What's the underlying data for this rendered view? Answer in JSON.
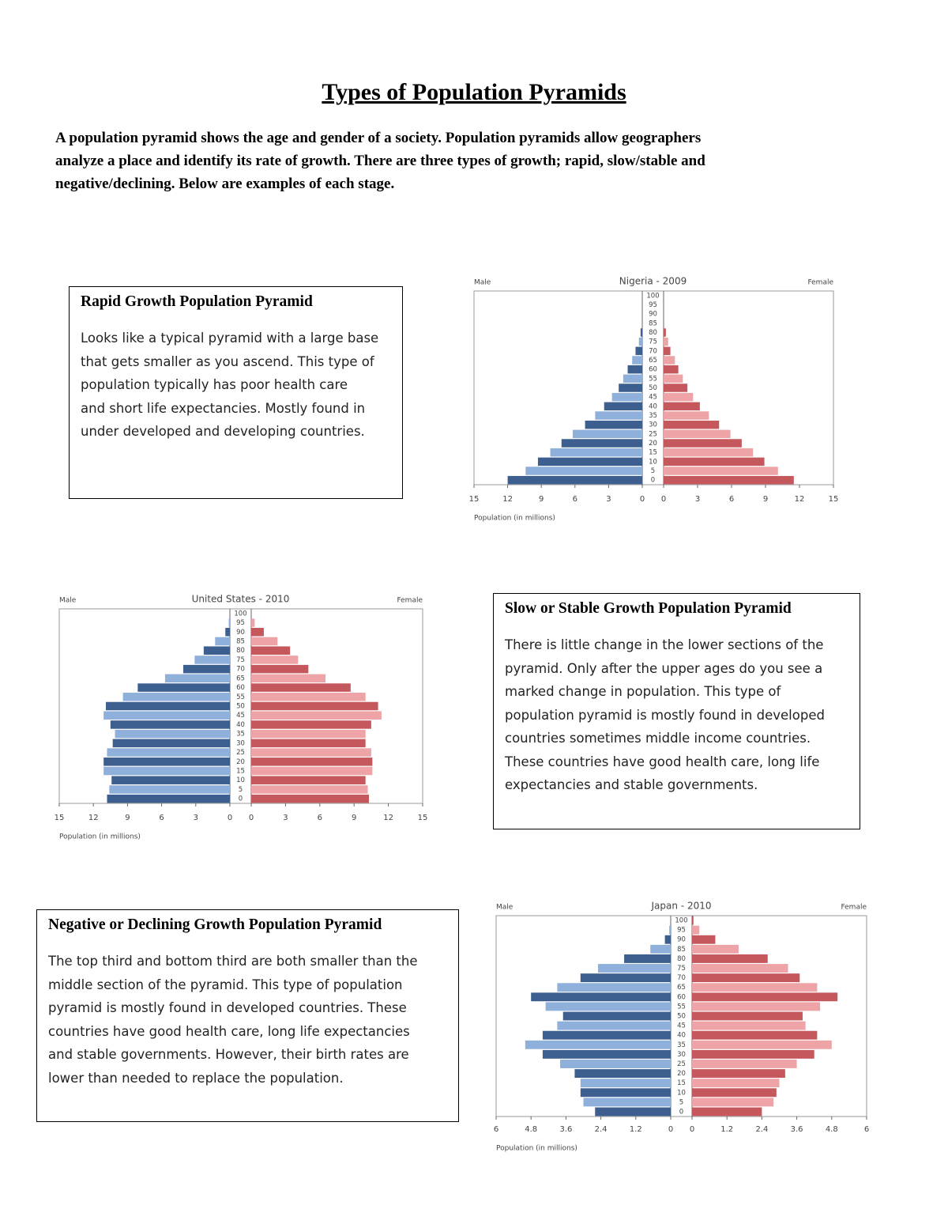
{
  "header": {
    "title": "Types of Population Pyramids",
    "intro": [
      "A population pyramid shows the age and gender of a society.  Population pyramids allow geographers",
      "analyze a place and identify its rate of growth.  There are three types of growth; rapid, slow/stable and",
      "negative/declining.  Below are examples of each stage."
    ]
  },
  "boxes": [
    {
      "title": "Rapid Growth Population Pyramid",
      "lines": [
        "Looks like a typical pyramid with a large base",
        "that gets smaller as you ascend. This type of",
        "population typically has poor health care",
        "and short life expectancies.  Mostly found in",
        "under developed and developing countries."
      ]
    },
    {
      "title": "Slow or Stable Growth Population Pyramid",
      "lines": [
        "There is little change in the lower sections of the",
        "pyramid.  Only after the upper ages do you see a",
        "marked change in population.  This type of",
        "population pyramid is mostly found in developed",
        "countries sometimes middle income countries.",
        "These countries have good health care, long life",
        "expectancies and stable governments."
      ]
    },
    {
      "title": "Negative or Declining Growth Population Pyramid",
      "lines": [
        "The top third and bottom third are both smaller than the",
        "middle section of the pyramid.  This type of population",
        "pyramid is mostly found in developed countries.  These",
        "countries have good health care, long life expectancies",
        "and stable governments.  However, their birth rates are",
        "lower than needed to replace the population."
      ]
    }
  ],
  "chart_data": [
    {
      "type": "pyramid",
      "title": "Nigeria - 2009",
      "x_label": "Population (in millions)",
      "categories": [
        "0",
        "5",
        "10",
        "15",
        "20",
        "25",
        "30",
        "35",
        "40",
        "45",
        "50",
        "55",
        "60",
        "65",
        "70",
        "75",
        "80",
        "85",
        "90",
        "95",
        "100"
      ],
      "series": [
        {
          "name": "Male",
          "colors": [
            "#3d5f8f",
            "#8fb0da"
          ],
          "values": [
            12.0,
            10.4,
            9.3,
            8.2,
            7.2,
            6.2,
            5.1,
            4.2,
            3.4,
            2.7,
            2.1,
            1.7,
            1.3,
            0.9,
            0.6,
            0.3,
            0.15,
            0,
            0,
            0,
            0
          ]
        },
        {
          "name": "Female",
          "colors": [
            "#c4585c",
            "#eea3a6"
          ],
          "values": [
            11.5,
            10.1,
            8.9,
            7.9,
            6.9,
            5.9,
            4.9,
            4.0,
            3.2,
            2.6,
            2.1,
            1.7,
            1.3,
            1.0,
            0.6,
            0.4,
            0.2,
            0,
            0,
            0,
            0
          ]
        }
      ],
      "xlim": [
        0,
        15
      ],
      "xticks": [
        0,
        3,
        6,
        9,
        12,
        15
      ]
    },
    {
      "type": "pyramid",
      "title": "United States - 2010",
      "x_label": "Population (in millions)",
      "categories": [
        "0",
        "5",
        "10",
        "15",
        "20",
        "25",
        "30",
        "35",
        "40",
        "45",
        "50",
        "55",
        "60",
        "65",
        "70",
        "75",
        "80",
        "85",
        "90",
        "95",
        "100"
      ],
      "series": [
        {
          "name": "Male",
          "colors": [
            "#3d5f8f",
            "#8fb0da"
          ],
          "values": [
            10.8,
            10.6,
            10.4,
            11.1,
            11.1,
            10.8,
            10.3,
            10.1,
            10.5,
            11.1,
            10.9,
            9.4,
            8.1,
            5.7,
            4.1,
            3.1,
            2.3,
            1.3,
            0.4,
            0.1,
            0
          ]
        },
        {
          "name": "Female",
          "colors": [
            "#c4585c",
            "#eea3a6"
          ],
          "values": [
            10.3,
            10.2,
            10.0,
            10.6,
            10.6,
            10.5,
            10.0,
            10.0,
            10.5,
            11.4,
            11.1,
            10.0,
            8.7,
            6.5,
            5.0,
            4.1,
            3.4,
            2.3,
            1.1,
            0.3,
            0
          ]
        }
      ],
      "xlim": [
        0,
        15
      ],
      "xticks": [
        0,
        3,
        6,
        9,
        12,
        15
      ]
    },
    {
      "type": "pyramid",
      "title": "Japan - 2010",
      "x_label": "Population (in millions)",
      "categories": [
        "0",
        "5",
        "10",
        "15",
        "20",
        "25",
        "30",
        "35",
        "40",
        "45",
        "50",
        "55",
        "60",
        "65",
        "70",
        "75",
        "80",
        "85",
        "90",
        "95",
        "100"
      ],
      "series": [
        {
          "name": "Male",
          "colors": [
            "#3d5f8f",
            "#8fb0da"
          ],
          "values": [
            2.6,
            3.0,
            3.1,
            3.1,
            3.3,
            3.8,
            4.4,
            5.0,
            4.4,
            3.9,
            3.7,
            4.3,
            4.8,
            3.9,
            3.1,
            2.5,
            1.6,
            0.7,
            0.2,
            0.05,
            0
          ]
        },
        {
          "name": "Female",
          "colors": [
            "#c4585c",
            "#eea3a6"
          ],
          "values": [
            2.4,
            2.8,
            2.9,
            3.0,
            3.2,
            3.6,
            4.2,
            4.8,
            4.3,
            3.9,
            3.8,
            4.4,
            5.0,
            4.3,
            3.7,
            3.3,
            2.6,
            1.6,
            0.8,
            0.25,
            0.05
          ]
        }
      ],
      "xlim": [
        0,
        6
      ],
      "xticks": [
        0,
        1.2,
        2.4,
        3.6,
        4.8,
        6
      ]
    }
  ]
}
